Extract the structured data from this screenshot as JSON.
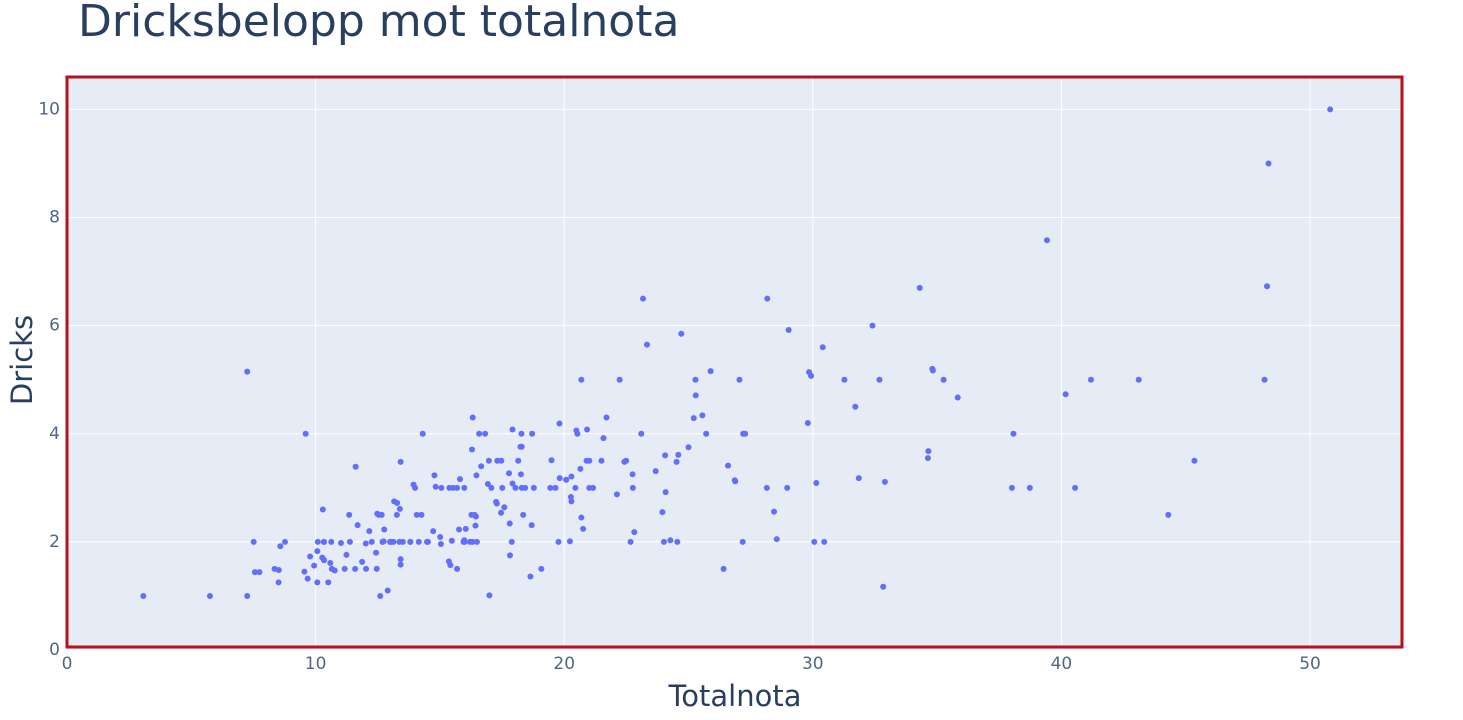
{
  "chart_data": {
    "type": "scatter",
    "title": "Dricksbelopp mot totalnota",
    "x_label": "Totalnota",
    "y_label": "Dricks",
    "color": "#636efa",
    "grid": true,
    "xlim": [
      0,
      53.7
    ],
    "ylim": [
      0,
      10.6
    ],
    "xticks": [
      0,
      10,
      20,
      30,
      40,
      50
    ],
    "yticks": [
      0,
      2,
      4,
      6,
      8,
      10
    ],
    "x": [
      16.99,
      10.34,
      21.01,
      23.68,
      24.59,
      25.29,
      8.77,
      26.88,
      15.04,
      14.78,
      10.27,
      35.26,
      15.42,
      18.43,
      14.83,
      21.58,
      10.33,
      16.29,
      16.97,
      20.65,
      17.92,
      20.29,
      15.77,
      39.42,
      19.82,
      17.81,
      13.37,
      12.69,
      21.7,
      19.65,
      9.55,
      18.35,
      15.06,
      20.69,
      17.78,
      24.06,
      16.31,
      16.93,
      18.69,
      31.27,
      16.04,
      17.46,
      13.94,
      9.68,
      30.4,
      18.29,
      22.23,
      32.4,
      28.55,
      18.04,
      12.54,
      10.29,
      34.81,
      9.94,
      25.56,
      19.49,
      38.01,
      26.41,
      11.24,
      48.27,
      20.29,
      13.81,
      11.02,
      18.29,
      17.59,
      20.08,
      16.45,
      3.07,
      20.23,
      15.01,
      12.02,
      17.07,
      26.86,
      25.28,
      14.73,
      10.51,
      17.92,
      27.2,
      22.76,
      17.29,
      19.44,
      16.66,
      10.07,
      32.68,
      15.98,
      34.83,
      13.03,
      18.28,
      24.71,
      21.16,
      28.97,
      22.49,
      5.75,
      16.32,
      22.75,
      40.17,
      27.28,
      12.03,
      21.01,
      12.46,
      11.35,
      15.38,
      44.3,
      22.42,
      20.92,
      15.36,
      20.49,
      25.21,
      18.24,
      14.31,
      14.0,
      7.25,
      38.07,
      23.95,
      25.71,
      17.31,
      29.93,
      10.65,
      12.43,
      24.08,
      11.69,
      13.42,
      14.26,
      15.95,
      12.48,
      29.8,
      8.52,
      14.52,
      11.38,
      22.82,
      19.08,
      20.27,
      11.17,
      12.26,
      18.26,
      8.51,
      10.33,
      14.15,
      16.0,
      13.16,
      17.47,
      34.3,
      41.19,
      27.05,
      16.43,
      8.35,
      18.64,
      11.87,
      9.78,
      7.51,
      14.07,
      13.13,
      17.26,
      24.55,
      19.77,
      29.85,
      48.17,
      25.0,
      13.39,
      16.49,
      21.5,
      12.66,
      16.21,
      13.81,
      17.51,
      24.52,
      20.76,
      31.71,
      10.59,
      10.63,
      50.81,
      15.81,
      7.25,
      31.85,
      16.82,
      32.9,
      17.89,
      14.48,
      9.6,
      34.63,
      34.65,
      23.33,
      45.35,
      23.17,
      40.55,
      20.69,
      20.9,
      30.46,
      18.15,
      23.1,
      15.69,
      19.81,
      28.44,
      15.48,
      16.58,
      7.56,
      10.34,
      43.11,
      13.0,
      13.51,
      18.71,
      12.74,
      13.0,
      16.4,
      20.53,
      16.47,
      26.59,
      38.73,
      24.27,
      12.76,
      30.06,
      25.89,
      48.33,
      13.27,
      28.17,
      12.9,
      28.15,
      11.59,
      7.74,
      30.14,
      12.16,
      13.42,
      8.58,
      15.98,
      13.42,
      16.27,
      10.09,
      20.45,
      13.28,
      22.12,
      24.01,
      15.69,
      11.61,
      10.77,
      15.53,
      10.07,
      12.6,
      32.83,
      35.83,
      29.03,
      27.18,
      22.67,
      17.82,
      18.78
    ],
    "y": [
      1.01,
      1.66,
      3.5,
      3.31,
      3.61,
      4.71,
      2.0,
      3.12,
      1.96,
      3.23,
      1.71,
      5.0,
      1.57,
      3.0,
      3.02,
      3.92,
      1.67,
      3.71,
      3.5,
      3.35,
      4.08,
      2.75,
      2.23,
      7.58,
      3.18,
      2.34,
      2.0,
      2.0,
      4.3,
      3.0,
      1.45,
      2.5,
      3.0,
      2.45,
      3.27,
      3.6,
      2.0,
      3.07,
      2.31,
      5.0,
      2.24,
      2.54,
      3.06,
      1.32,
      5.6,
      3.0,
      5.0,
      6.0,
      2.05,
      3.0,
      2.5,
      2.6,
      5.2,
      1.56,
      4.34,
      3.51,
      3.0,
      1.5,
      1.76,
      6.73,
      3.21,
      2.0,
      1.98,
      3.76,
      2.64,
      3.15,
      2.47,
      1.0,
      2.01,
      2.09,
      1.97,
      3.0,
      3.14,
      5.0,
      2.2,
      1.25,
      3.08,
      4.0,
      3.0,
      2.71,
      3.0,
      3.4,
      1.83,
      5.0,
      2.03,
      5.17,
      2.0,
      4.0,
      5.85,
      3.0,
      3.0,
      3.5,
      1.0,
      4.3,
      3.25,
      4.73,
      4.0,
      1.5,
      3.0,
      1.5,
      2.5,
      3.0,
      2.5,
      3.48,
      4.08,
      1.64,
      4.06,
      4.29,
      3.76,
      4.0,
      3.0,
      1.0,
      4.0,
      2.55,
      4.0,
      3.5,
      5.07,
      1.5,
      1.8,
      2.92,
      2.31,
      1.68,
      2.5,
      2.0,
      2.52,
      4.2,
      1.48,
      2.0,
      2.0,
      2.18,
      1.5,
      2.83,
      1.5,
      2.0,
      3.25,
      1.25,
      2.0,
      2.0,
      2.0,
      2.75,
      3.5,
      6.7,
      5.0,
      5.0,
      2.3,
      1.5,
      1.36,
      1.63,
      1.73,
      2.0,
      2.5,
      2.0,
      2.74,
      2.0,
      2.0,
      5.14,
      5.0,
      3.75,
      2.61,
      2.0,
      3.5,
      2.5,
      2.0,
      2.0,
      3.0,
      3.48,
      2.24,
      4.5,
      1.61,
      2.0,
      10.0,
      3.16,
      5.15,
      3.18,
      4.0,
      3.11,
      2.0,
      2.0,
      4.0,
      3.55,
      3.68,
      5.65,
      3.5,
      6.5,
      3.0,
      5.0,
      3.5,
      2.0,
      3.5,
      4.0,
      1.5,
      4.19,
      2.56,
      2.02,
      4.0,
      1.44,
      2.0,
      5.0,
      2.0,
      2.0,
      4.0,
      2.01,
      2.0,
      2.5,
      4.0,
      3.23,
      3.41,
      3.0,
      2.03,
      2.23,
      2.0,
      5.16,
      9.0,
      2.5,
      6.5,
      1.1,
      3.0,
      1.5,
      1.44,
      3.09,
      2.2,
      3.48,
      1.92,
      3.0,
      1.58,
      2.5,
      2.0,
      3.0,
      2.72,
      2.88,
      2.0,
      3.0,
      3.39,
      1.47,
      3.0,
      1.25,
      1.0,
      1.17,
      4.67,
      5.92,
      2.0,
      2.0,
      1.75,
      3.0
    ]
  }
}
